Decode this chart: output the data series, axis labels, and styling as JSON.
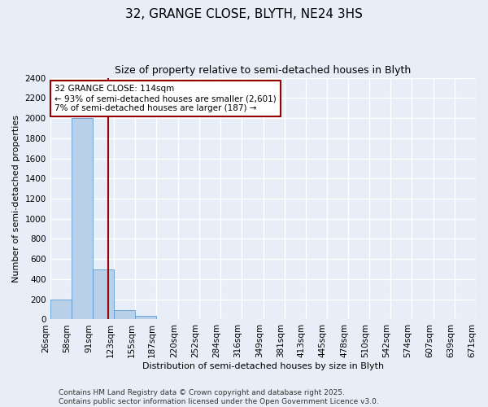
{
  "title": "32, GRANGE CLOSE, BLYTH, NE24 3HS",
  "subtitle": "Size of property relative to semi-detached houses in Blyth",
  "xlabel": "Distribution of semi-detached houses by size in Blyth",
  "ylabel": "Number of semi-detached properties",
  "footer_line1": "Contains HM Land Registry data © Crown copyright and database right 2025.",
  "footer_line2": "Contains public sector information licensed under the Open Government Licence v3.0.",
  "annotation_line1": "32 GRANGE CLOSE: 114sqm",
  "annotation_line2": "← 93% of semi-detached houses are smaller (2,601)",
  "annotation_line3": "7% of semi-detached houses are larger (187) →",
  "property_size": 114,
  "bar_color": "#b8d0e8",
  "bar_edge_color": "#5b9bd5",
  "vline_color": "#990000",
  "annotation_box_facecolor": "#ffffff",
  "annotation_box_edgecolor": "#990000",
  "background_color": "#e8eef7",
  "grid_color": "#ffffff",
  "bins": [
    26,
    58,
    91,
    123,
    155,
    187,
    220,
    252,
    284,
    316,
    349,
    381,
    413,
    445,
    478,
    510,
    542,
    574,
    607,
    639,
    671
  ],
  "counts": [
    200,
    2000,
    500,
    90,
    40,
    0,
    0,
    0,
    0,
    0,
    0,
    0,
    0,
    0,
    0,
    0,
    0,
    0,
    0,
    0
  ],
  "ylim": [
    0,
    2400
  ],
  "yticks": [
    0,
    200,
    400,
    600,
    800,
    1000,
    1200,
    1400,
    1600,
    1800,
    2000,
    2200,
    2400
  ],
  "title_fontsize": 11,
  "subtitle_fontsize": 9,
  "axis_label_fontsize": 8,
  "tick_fontsize": 7.5,
  "footer_fontsize": 6.5
}
